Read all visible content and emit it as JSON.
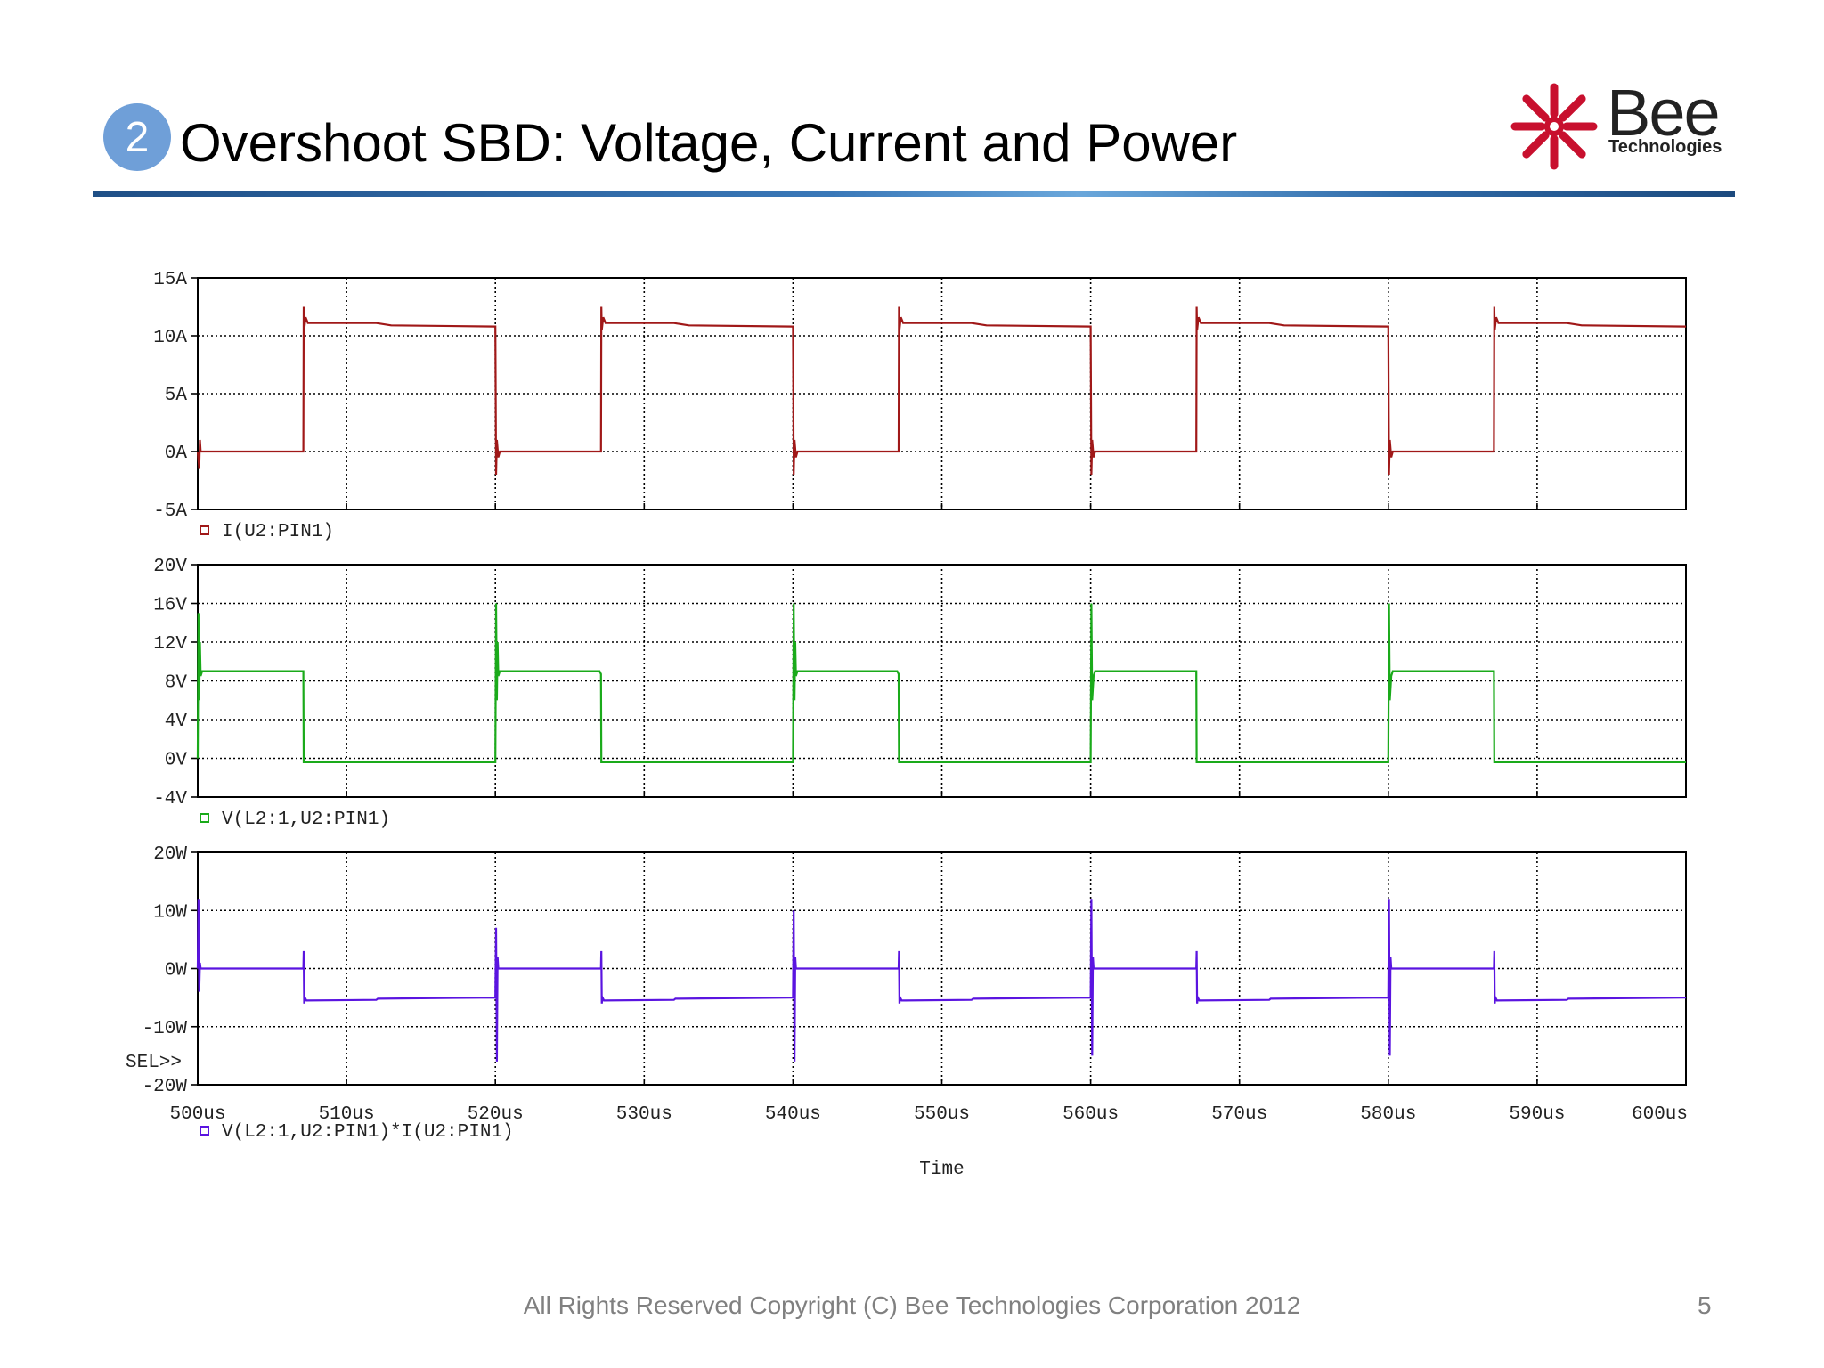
{
  "slide": {
    "badge_number": "2",
    "title": "Overshoot SBD: Voltage, Current and Power",
    "footer": "All Rights Reserved Copyright (C) Bee Technologies Corporation 2012",
    "page_number": "5",
    "logo": {
      "word": "Bee",
      "sub": "Technologies",
      "brand_color": "#c8102e"
    }
  },
  "chart_data": [
    {
      "type": "line",
      "series": [
        {
          "name": "I(U2:PIN1)",
          "color": "#a01818",
          "x": [
            500,
            500.1,
            500.15,
            500.2,
            507.1,
            507.12,
            507.15,
            507.25,
            507.4,
            512,
            513,
            520,
            520.05,
            520.1,
            520.2,
            520.3,
            527.1,
            527.12,
            527.15,
            527.25,
            527.4,
            532,
            533,
            540,
            540.05,
            540.1,
            540.2,
            540.3,
            547.1,
            547.12,
            547.15,
            547.25,
            547.4,
            552,
            553,
            560,
            560.05,
            560.1,
            560.2,
            560.3,
            567.1,
            567.12,
            567.15,
            567.25,
            567.4,
            572,
            573,
            580,
            580.05,
            580.1,
            580.2,
            580.3,
            587.1,
            587.12,
            587.15,
            587.25,
            587.4,
            592,
            593,
            600
          ],
          "y": [
            0,
            -1.5,
            1,
            0,
            0,
            12.5,
            10.5,
            11.6,
            11.1,
            11.1,
            10.9,
            10.8,
            -2,
            1,
            -0.5,
            0,
            0,
            12.5,
            10.5,
            11.6,
            11.1,
            11.1,
            10.9,
            10.8,
            -2,
            1,
            -0.5,
            0,
            0,
            12.5,
            10.5,
            11.6,
            11.1,
            11.1,
            10.9,
            10.8,
            -2,
            1,
            -0.5,
            0,
            0,
            12.5,
            10.5,
            11.6,
            11.1,
            11.1,
            10.9,
            10.8,
            -2,
            1,
            -0.5,
            0,
            0,
            12.5,
            10.5,
            11.6,
            11.1,
            11.1,
            10.9,
            10.8
          ]
        }
      ],
      "xlim": [
        500,
        600
      ],
      "ylim": [
        -5,
        15
      ],
      "y_ticks": [
        "15A",
        "10A",
        "5A",
        "0A",
        "-5A"
      ],
      "grid": true
    },
    {
      "type": "line",
      "series": [
        {
          "name": "V(L2:1,U2:PIN1)",
          "color": "#1aaa1a",
          "x": [
            500,
            500.05,
            500.1,
            500.15,
            500.2,
            500.3,
            507.1,
            507.12,
            520,
            520.05,
            520.1,
            520.15,
            520.2,
            520.3,
            527,
            527.1,
            527.12,
            540,
            540.05,
            540.1,
            540.15,
            540.2,
            540.3,
            547,
            547.1,
            547.12,
            560,
            560.05,
            560.1,
            560.2,
            560.3,
            567.1,
            567.12,
            580,
            580.05,
            580.1,
            580.2,
            580.3,
            587.1,
            587.12,
            600
          ],
          "y": [
            0,
            15,
            6,
            12,
            8.5,
            9,
            9,
            -0.4,
            -0.4,
            16,
            6,
            12,
            8.5,
            9,
            9,
            8.7,
            -0.4,
            -0.4,
            16,
            6,
            12,
            8.5,
            9,
            9,
            8.7,
            -0.4,
            -0.4,
            16,
            6,
            8.5,
            9,
            9,
            -0.4,
            -0.4,
            16,
            6,
            8.5,
            9,
            9,
            -0.4,
            -0.4
          ]
        }
      ],
      "xlim": [
        500,
        600
      ],
      "ylim": [
        -4,
        20
      ],
      "y_ticks": [
        "20V",
        "16V",
        "12V",
        "8V",
        "4V",
        "0V",
        "-4V"
      ],
      "grid": true
    },
    {
      "type": "line",
      "series": [
        {
          "name": "V(L2:1,U2:PIN1)*I(U2:PIN1)",
          "color": "#5a14e0",
          "x": [
            500,
            500.05,
            500.1,
            500.15,
            500.2,
            507.1,
            507.12,
            507.15,
            507.2,
            507.3,
            512,
            512.1,
            520,
            520.05,
            520.1,
            520.15,
            520.2,
            527.1,
            527.12,
            527.15,
            527.2,
            527.3,
            532,
            532.1,
            540,
            540.05,
            540.1,
            540.15,
            540.2,
            547.1,
            547.12,
            547.15,
            547.2,
            547.3,
            552,
            552.1,
            560,
            560.05,
            560.1,
            560.15,
            560.2,
            567.1,
            567.12,
            567.15,
            567.2,
            567.3,
            572,
            572.1,
            580,
            580.05,
            580.1,
            580.15,
            580.2,
            587.1,
            587.12,
            587.15,
            587.2,
            587.3,
            592,
            592.1,
            600
          ],
          "y": [
            0,
            12,
            -4,
            1,
            0,
            0,
            3,
            -6,
            -5,
            -5.5,
            -5.4,
            -5.2,
            -5,
            7,
            -16,
            2,
            0,
            0,
            3,
            -6,
            -5,
            -5.5,
            -5.4,
            -5.2,
            -5,
            10,
            -16,
            2,
            0,
            0,
            3,
            -6,
            -5,
            -5.5,
            -5.4,
            -5.2,
            -5,
            12,
            -15,
            2,
            0,
            0,
            3,
            -6,
            -5,
            -5.5,
            -5.4,
            -5.2,
            -5,
            12,
            -15,
            2,
            0,
            0,
            3,
            -6,
            -5,
            -5.5,
            -5.4,
            -5.2,
            -5
          ]
        }
      ],
      "xlim": [
        500,
        600
      ],
      "ylim": [
        -20,
        20
      ],
      "y_ticks": [
        "20W",
        "10W",
        "0W",
        "-10W",
        "-20W"
      ],
      "x_ticks": [
        "500us",
        "510us",
        "520us",
        "530us",
        "540us",
        "550us",
        "560us",
        "570us",
        "580us",
        "590us",
        "600us"
      ],
      "xlabel": "Time",
      "cursor_label": "SEL>>",
      "grid": true
    }
  ]
}
